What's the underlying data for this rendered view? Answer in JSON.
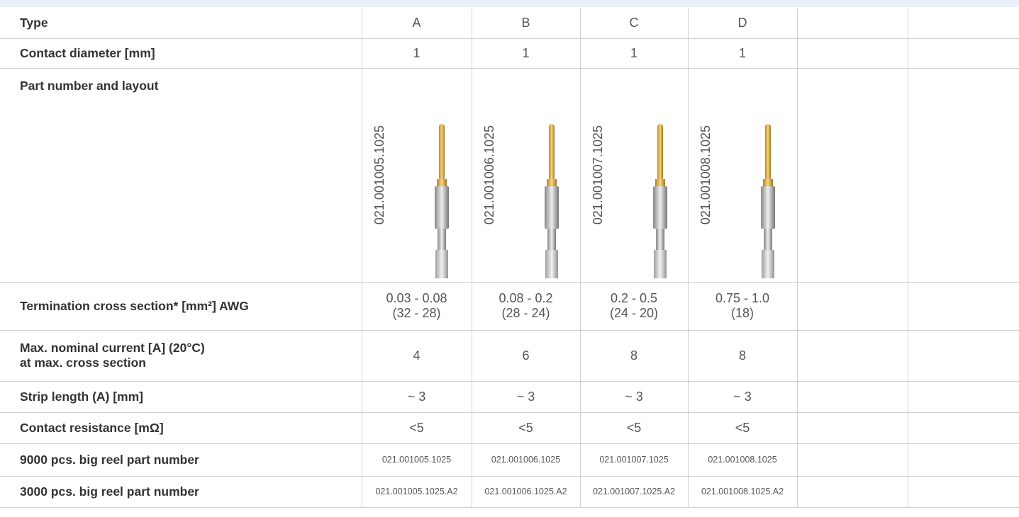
{
  "table": {
    "rows": [
      {
        "label": "Type",
        "cells": [
          "A",
          "B",
          "C",
          "D"
        ]
      },
      {
        "label": "Contact diameter [mm]",
        "cells": [
          "1",
          "1",
          "1",
          "1"
        ]
      },
      {
        "label": "Part number and layout",
        "cells": [
          "021.001005.1025",
          "021.001006.1025",
          "021.001007.1025",
          "021.001008.1025"
        ]
      },
      {
        "label": "Termination cross section* [mm²] AWG",
        "cells": [
          [
            "0.03 - 0.08",
            "(32 - 28)"
          ],
          [
            "0.08 - 0.2",
            "(28 - 24)"
          ],
          [
            "0.2 - 0.5",
            "(24 - 20)"
          ],
          [
            "0.75 - 1.0",
            "(18)"
          ]
        ]
      },
      {
        "label": [
          "Max. nominal current [A] (20°C)",
          "at max. cross section"
        ],
        "cells": [
          "4",
          "6",
          "8",
          "8"
        ]
      },
      {
        "label": "Strip length (A) [mm]",
        "cells": [
          "~ 3",
          "~ 3",
          "~ 3",
          "~ 3"
        ]
      },
      {
        "label": "Contact resistance [mΩ]",
        "cells": [
          "<5",
          "<5",
          "<5",
          "<5"
        ]
      },
      {
        "label": "9000 pcs. big reel part number",
        "cells": [
          "021.001005.1025",
          "021.001006.1025",
          "021.001007.1025",
          "021.001008.1025"
        ]
      },
      {
        "label": "3000 pcs. big reel part number",
        "cells": [
          "021.001005.1025.A2",
          "021.001006.1025.A2",
          "021.001007.1025.A2",
          "021.001008.1025.A2"
        ]
      }
    ]
  }
}
